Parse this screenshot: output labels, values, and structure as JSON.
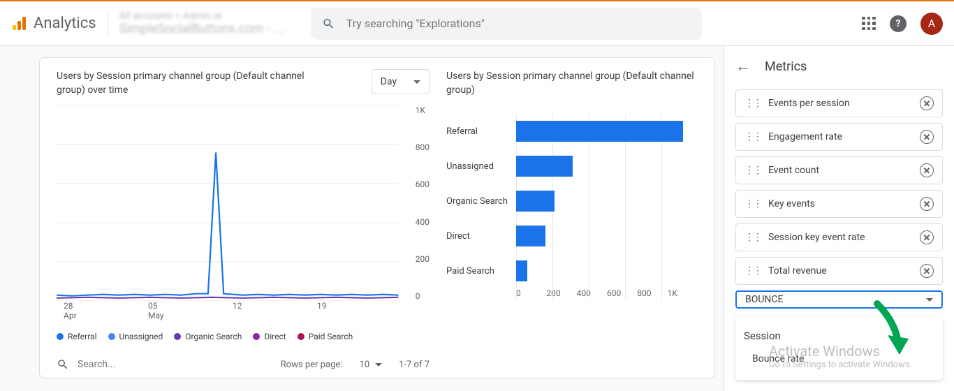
{
  "header": {
    "brand": "Analytics",
    "property_label_small": "All accounts > Admin at",
    "property_label_main": "SimpleSocialButtons.com - ...",
    "search_placeholder": "Try searching \"Explorations\"",
    "avatar_letter": "A",
    "avatar_bg": "#a52714"
  },
  "line_chart": {
    "title": "Users by Session primary channel group (Default channel group) over time",
    "period": "Day",
    "y_ticks": [
      "1K",
      "800",
      "600",
      "400",
      "200",
      "0"
    ],
    "x_ticks": [
      "28\nApr",
      "05\nMay",
      "12",
      "19"
    ],
    "series": [
      {
        "name": "Referral",
        "color": "#1a73e8"
      },
      {
        "name": "Unassigned",
        "color": "#4285f4"
      },
      {
        "name": "Organic Search",
        "color": "#673ab7"
      },
      {
        "name": "Direct",
        "color": "#8e24aa"
      },
      {
        "name": "Paid Search",
        "color": "#ad1457"
      }
    ],
    "spike_color": "#1a73e8",
    "baseline_color": "#673ab7"
  },
  "bar_chart": {
    "title": "Users by Session primary channel group (Default channel group)",
    "x_ticks": [
      "0",
      "200",
      "400",
      "600",
      "800",
      "1K"
    ],
    "x_max": 1000,
    "bars": [
      {
        "label": "Referral",
        "value": 920,
        "color": "#1a73e8"
      },
      {
        "label": "Unassigned",
        "value": 310,
        "color": "#1a73e8"
      },
      {
        "label": "Organic Search",
        "value": 210,
        "color": "#1a73e8"
      },
      {
        "label": "Direct",
        "value": 160,
        "color": "#1a73e8"
      },
      {
        "label": "Paid Search",
        "value": 60,
        "color": "#1a73e8"
      }
    ]
  },
  "table": {
    "search_placeholder": "Search...",
    "rows_label": "Rows per page:",
    "rows_value": "10",
    "page_info": "1-7 of 7"
  },
  "sidebar": {
    "title": "Metrics",
    "items": [
      "Events per session",
      "Engagement rate",
      "Event count",
      "Key events",
      "Session key event rate",
      "Total revenue"
    ],
    "search_value": "BOUNCE",
    "dropdown_group": "Session",
    "dropdown_item": "Bounce rate"
  },
  "watermark": {
    "main": "Activate Windows",
    "sub": "Go to Settings to activate Windows."
  },
  "arrow_color": "#00a651"
}
